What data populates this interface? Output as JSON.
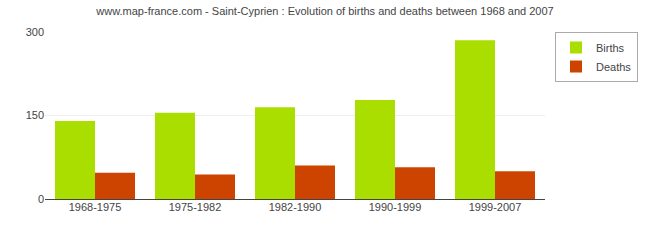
{
  "chart_data": {
    "type": "bar",
    "title": "www.map-france.com - Saint-Cyprien : Evolution of births and deaths between 1968 and 2007",
    "categories": [
      "1968-1975",
      "1975-1982",
      "1982-1990",
      "1990-1999",
      "1999-2007"
    ],
    "series": [
      {
        "name": "Births",
        "color": "#aadd00",
        "values": [
          140,
          155,
          165,
          178,
          285
        ]
      },
      {
        "name": "Deaths",
        "color": "#cc4400",
        "values": [
          47,
          44,
          60,
          57,
          50
        ]
      }
    ],
    "ylim": [
      0,
      300
    ],
    "yticks": [
      0,
      150,
      300
    ],
    "grid": true,
    "legend": "upper right"
  }
}
